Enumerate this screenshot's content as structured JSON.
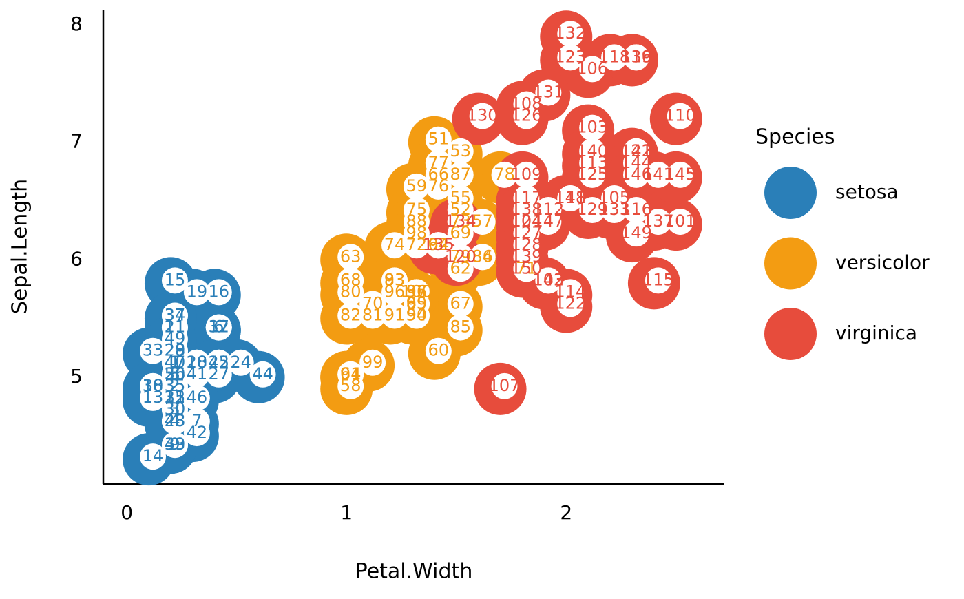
{
  "chart_data": {
    "type": "scatter",
    "x_label": "Petal.Width",
    "y_label": "Sepal.Length",
    "legend_title": "Species",
    "legend": "right",
    "xlim": [
      -0.107,
      2.72
    ],
    "xticks": [
      0,
      1,
      2
    ],
    "ylim": [
      4.09,
      8.13
    ],
    "yticks": [
      5,
      6,
      7,
      8
    ],
    "series": [
      {
        "name": "setosa",
        "color": "#2a7fb8",
        "x": [
          0.2,
          0.2,
          0.2,
          0.2,
          0.2,
          0.4,
          0.3,
          0.2,
          0.2,
          0.1,
          0.2,
          0.2,
          0.1,
          0.1,
          0.2,
          0.4,
          0.4,
          0.3,
          0.3,
          0.3,
          0.2,
          0.4,
          0.2,
          0.5,
          0.2,
          0.2,
          0.4,
          0.2,
          0.2,
          0.2,
          0.2,
          0.4,
          0.1,
          0.2,
          0.2,
          0.2,
          0.2,
          0.1,
          0.2,
          0.2,
          0.3,
          0.3,
          0.2,
          0.6,
          0.4,
          0.3,
          0.2,
          0.2,
          0.2,
          0.2
        ],
        "values": [
          5.1,
          4.9,
          4.7,
          4.6,
          5.0,
          5.4,
          4.6,
          5.0,
          4.4,
          4.9,
          5.4,
          4.8,
          4.8,
          4.3,
          5.8,
          5.7,
          5.4,
          5.1,
          5.7,
          5.1,
          5.4,
          5.1,
          4.6,
          5.1,
          4.8,
          5.0,
          5.0,
          5.2,
          5.2,
          4.7,
          4.8,
          5.4,
          5.2,
          5.5,
          4.9,
          5.0,
          5.5,
          4.9,
          4.4,
          5.1,
          5.0,
          4.5,
          4.4,
          5.0,
          5.1,
          4.8,
          5.1,
          4.6,
          5.3,
          5.0
        ],
        "labels": [
          1,
          2,
          3,
          4,
          5,
          6,
          7,
          8,
          9,
          10,
          11,
          12,
          13,
          14,
          15,
          16,
          17,
          18,
          19,
          20,
          21,
          22,
          23,
          24,
          25,
          26,
          27,
          28,
          29,
          30,
          31,
          32,
          33,
          34,
          35,
          36,
          37,
          38,
          39,
          40,
          41,
          42,
          43,
          44,
          45,
          46,
          47,
          48,
          49,
          50
        ]
      },
      {
        "name": "versicolor",
        "color": "#f39c12",
        "x": [
          1.4,
          1.5,
          1.5,
          1.3,
          1.5,
          1.3,
          1.6,
          1.0,
          1.3,
          1.4,
          1.0,
          1.5,
          1.0,
          1.4,
          1.3,
          1.4,
          1.5,
          1.0,
          1.5,
          1.1,
          1.8,
          1.3,
          1.5,
          1.2,
          1.3,
          1.4,
          1.4,
          1.7,
          1.5,
          1.0,
          1.1,
          1.0,
          1.2,
          1.6,
          1.5,
          1.6,
          1.5,
          1.3,
          1.3,
          1.3,
          1.2,
          1.4,
          1.2,
          1.0,
          1.3,
          1.2,
          1.3,
          1.3,
          1.1,
          1.3
        ],
        "values": [
          7.0,
          6.4,
          6.9,
          5.5,
          6.5,
          5.7,
          6.3,
          4.9,
          6.6,
          5.2,
          5.0,
          5.9,
          6.0,
          6.1,
          5.6,
          6.7,
          5.6,
          5.8,
          6.2,
          5.6,
          5.9,
          6.1,
          6.3,
          6.1,
          6.4,
          6.6,
          6.8,
          6.7,
          6.0,
          5.7,
          5.5,
          5.5,
          5.8,
          6.0,
          5.4,
          6.0,
          6.7,
          6.3,
          5.6,
          5.5,
          5.5,
          6.1,
          5.8,
          5.0,
          5.6,
          5.7,
          5.7,
          6.2,
          5.1,
          5.7
        ],
        "labels": [
          51,
          52,
          53,
          54,
          55,
          56,
          57,
          58,
          59,
          60,
          61,
          62,
          63,
          64,
          65,
          66,
          67,
          68,
          69,
          70,
          71,
          72,
          73,
          74,
          75,
          76,
          77,
          78,
          79,
          80,
          81,
          82,
          83,
          84,
          85,
          86,
          87,
          88,
          89,
          90,
          91,
          92,
          93,
          94,
          95,
          96,
          97,
          98,
          99,
          100
        ]
      },
      {
        "name": "virginica",
        "color": "#e74c3c",
        "x": [
          2.5,
          1.9,
          2.1,
          1.8,
          2.2,
          2.1,
          1.7,
          1.8,
          1.8,
          2.5,
          2.0,
          1.9,
          2.1,
          2.0,
          2.4,
          2.3,
          1.8,
          2.2,
          2.3,
          1.5,
          2.3,
          2.0,
          2.0,
          1.8,
          2.1,
          1.8,
          1.8,
          1.8,
          2.1,
          1.6,
          1.9,
          2.0,
          2.2,
          1.5,
          1.4,
          2.3,
          2.4,
          1.8,
          1.8,
          2.1,
          2.4,
          2.3,
          1.9,
          2.3,
          2.5,
          2.3,
          1.9,
          2.0,
          2.3,
          1.8
        ],
        "values": [
          6.3,
          5.8,
          7.1,
          6.3,
          6.5,
          7.6,
          4.9,
          7.3,
          6.7,
          7.2,
          6.5,
          6.4,
          6.8,
          5.7,
          5.8,
          6.4,
          6.5,
          7.7,
          7.7,
          6.0,
          6.9,
          5.6,
          7.7,
          6.3,
          6.7,
          7.2,
          6.2,
          6.1,
          6.4,
          7.2,
          7.4,
          7.9,
          6.4,
          6.3,
          6.1,
          7.7,
          6.3,
          6.4,
          6.0,
          6.9,
          6.7,
          6.9,
          5.8,
          6.8,
          6.7,
          6.7,
          6.3,
          6.5,
          6.2,
          5.9
        ],
        "labels": [
          101,
          102,
          103,
          104,
          105,
          106,
          107,
          108,
          109,
          110,
          111,
          112,
          113,
          114,
          115,
          116,
          117,
          118,
          119,
          120,
          121,
          122,
          123,
          124,
          125,
          126,
          127,
          128,
          129,
          130,
          131,
          132,
          133,
          134,
          135,
          136,
          137,
          138,
          139,
          140,
          141,
          142,
          143,
          144,
          145,
          146,
          147,
          148,
          149,
          150
        ]
      }
    ]
  }
}
